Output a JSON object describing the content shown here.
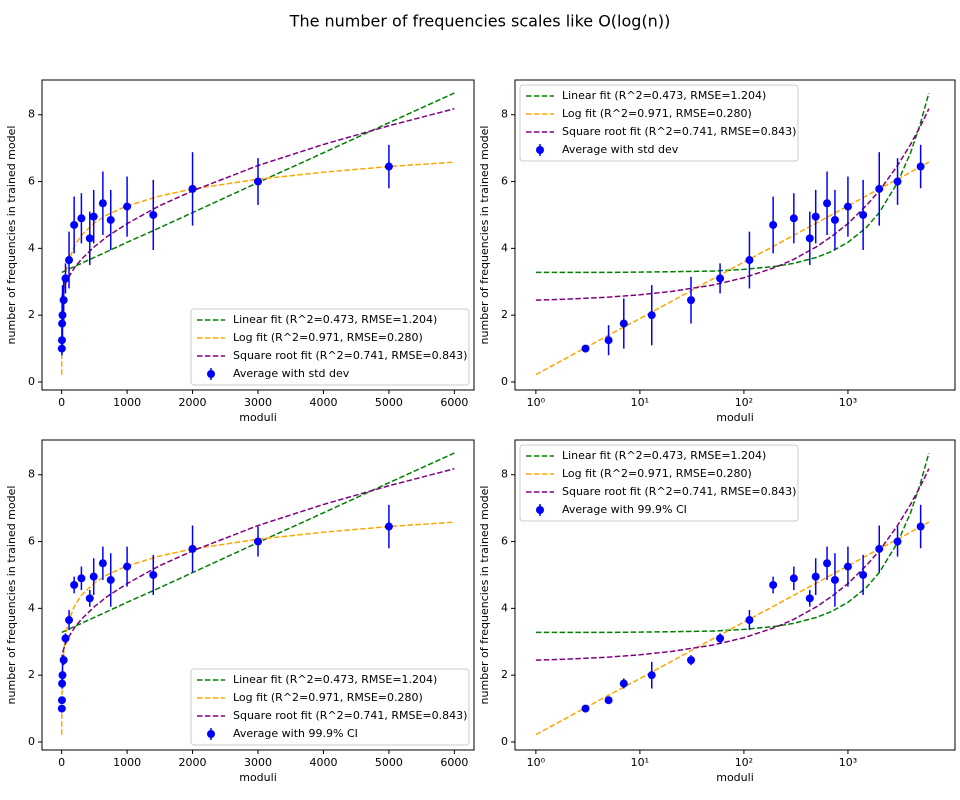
{
  "title": "The number of frequencies scales like O(log(n))",
  "chart_data": [
    {
      "type": "errorbar",
      "xscale": "linear",
      "x_label": "moduli",
      "y_label": "number of frequencies in trained model",
      "xlim": [
        -300,
        6300
      ],
      "ylim": [
        -0.24,
        9.04
      ],
      "xticks": [
        0,
        1000,
        2000,
        3000,
        4000,
        5000,
        6000
      ],
      "yticks": [
        0,
        2,
        4,
        6,
        8
      ],
      "legend": "lower right",
      "series": [
        {
          "name": "Linear fit (R^2=0.473, RMSE=1.204)",
          "color": "#008000",
          "style": "dashed",
          "x": [
            1,
            2,
            5,
            10,
            20,
            50,
            100,
            200,
            300,
            500,
            700,
            1000,
            1500,
            2000,
            3000,
            4000,
            5000,
            6000
          ],
          "values": [
            3.28,
            3.28,
            3.28,
            3.29,
            3.3,
            3.32,
            3.37,
            3.46,
            3.55,
            3.73,
            3.91,
            4.18,
            4.62,
            5.07,
            5.97,
            6.86,
            7.76,
            8.65
          ]
        },
        {
          "name": "Log fit (R^2=0.971, RMSE=0.280)",
          "color": "#ffa500",
          "style": "dashed",
          "x": [
            1,
            2,
            5,
            10,
            20,
            50,
            100,
            200,
            300,
            500,
            700,
            1000,
            1500,
            2000,
            3000,
            4000,
            5000,
            6000
          ],
          "values": [
            0.22,
            0.73,
            1.4,
            1.9,
            2.41,
            3.08,
            3.59,
            4.09,
            4.39,
            4.76,
            5.01,
            5.27,
            5.57,
            5.78,
            6.07,
            6.28,
            6.45,
            6.58
          ]
        },
        {
          "name": "Square root fit (R^2=0.741, RMSE=0.843)",
          "color": "#800080",
          "style": "dashed",
          "x": [
            1,
            2,
            5,
            10,
            20,
            50,
            100,
            200,
            300,
            500,
            700,
            1000,
            1500,
            2000,
            3000,
            4000,
            5000,
            6000
          ],
          "values": [
            2.45,
            2.48,
            2.54,
            2.61,
            2.71,
            2.9,
            3.12,
            3.43,
            3.67,
            4.05,
            4.36,
            4.74,
            5.28,
            5.72,
            6.48,
            7.11,
            7.67,
            8.18
          ]
        },
        {
          "name": "Average with std dev",
          "color": "#0000ff",
          "style": "errorbar",
          "x": [
            3,
            5,
            7,
            13,
            31,
            59,
            113,
            191,
            302,
            430,
            490,
            630,
            750,
            1000,
            1400,
            2000,
            3000,
            5000
          ],
          "values": [
            1.0,
            1.25,
            1.75,
            2.0,
            2.45,
            3.1,
            3.65,
            4.7,
            4.9,
            4.3,
            4.95,
            5.35,
            4.85,
            5.25,
            5.0,
            5.78,
            6.0,
            6.45
          ],
          "errors": [
            0.1,
            0.45,
            0.75,
            0.9,
            0.7,
            0.45,
            0.85,
            0.85,
            0.75,
            0.8,
            0.8,
            0.95,
            0.9,
            0.9,
            1.05,
            1.1,
            0.7,
            0.65
          ]
        }
      ]
    },
    {
      "type": "errorbar",
      "xscale": "log",
      "x_label": "moduli",
      "y_label": "number of frequencies in trained model",
      "xlim": [
        0.63,
        10700
      ],
      "ylim": [
        -0.24,
        9.04
      ],
      "xticks": [
        {
          "value": 1,
          "label": "10⁰"
        },
        {
          "value": 10,
          "label": "10¹"
        },
        {
          "value": 100,
          "label": "10²"
        },
        {
          "value": 1000,
          "label": "10³"
        }
      ],
      "yticks": [
        0,
        2,
        4,
        6,
        8
      ],
      "legend": "upper left",
      "series": [
        {
          "name": "Linear fit (R^2=0.473, RMSE=1.204)",
          "color": "#008000",
          "style": "dashed",
          "x": [
            1,
            2,
            5,
            10,
            20,
            50,
            100,
            200,
            300,
            500,
            700,
            1000,
            1500,
            2000,
            3000,
            4000,
            5000,
            6000
          ],
          "values": [
            3.28,
            3.28,
            3.28,
            3.29,
            3.3,
            3.32,
            3.37,
            3.46,
            3.55,
            3.73,
            3.91,
            4.18,
            4.62,
            5.07,
            5.97,
            6.86,
            7.76,
            8.65
          ]
        },
        {
          "name": "Log fit (R^2=0.971, RMSE=0.280)",
          "color": "#ffa500",
          "style": "dashed",
          "x": [
            1,
            2,
            5,
            10,
            20,
            50,
            100,
            200,
            300,
            500,
            700,
            1000,
            1500,
            2000,
            3000,
            4000,
            5000,
            6000
          ],
          "values": [
            0.22,
            0.73,
            1.4,
            1.9,
            2.41,
            3.08,
            3.59,
            4.09,
            4.39,
            4.76,
            5.01,
            5.27,
            5.57,
            5.78,
            6.07,
            6.28,
            6.45,
            6.58
          ]
        },
        {
          "name": "Square root fit (R^2=0.741, RMSE=0.843)",
          "color": "#800080",
          "style": "dashed",
          "x": [
            1,
            2,
            5,
            10,
            20,
            50,
            100,
            200,
            300,
            500,
            700,
            1000,
            1500,
            2000,
            3000,
            4000,
            5000,
            6000
          ],
          "values": [
            2.45,
            2.48,
            2.54,
            2.61,
            2.71,
            2.9,
            3.12,
            3.43,
            3.67,
            4.05,
            4.36,
            4.74,
            5.28,
            5.72,
            6.48,
            7.11,
            7.67,
            8.18
          ]
        },
        {
          "name": "Average with std dev",
          "color": "#0000ff",
          "style": "errorbar",
          "x": [
            3,
            5,
            7,
            13,
            31,
            59,
            113,
            191,
            302,
            430,
            490,
            630,
            750,
            1000,
            1400,
            2000,
            3000,
            5000
          ],
          "values": [
            1.0,
            1.25,
            1.75,
            2.0,
            2.45,
            3.1,
            3.65,
            4.7,
            4.9,
            4.3,
            4.95,
            5.35,
            4.85,
            5.25,
            5.0,
            5.78,
            6.0,
            6.45
          ],
          "errors": [
            0.1,
            0.45,
            0.75,
            0.9,
            0.7,
            0.45,
            0.85,
            0.85,
            0.75,
            0.8,
            0.8,
            0.95,
            0.9,
            0.9,
            1.05,
            1.1,
            0.7,
            0.65
          ]
        }
      ]
    },
    {
      "type": "errorbar",
      "xscale": "linear",
      "x_label": "moduli",
      "y_label": "number of frequencies in trained model",
      "xlim": [
        -300,
        6300
      ],
      "ylim": [
        -0.24,
        9.04
      ],
      "xticks": [
        0,
        1000,
        2000,
        3000,
        4000,
        5000,
        6000
      ],
      "yticks": [
        0,
        2,
        4,
        6,
        8
      ],
      "legend": "lower right",
      "series": [
        {
          "name": "Linear fit (R^2=0.473, RMSE=1.204)",
          "color": "#008000",
          "style": "dashed",
          "x": [
            1,
            2,
            5,
            10,
            20,
            50,
            100,
            200,
            300,
            500,
            700,
            1000,
            1500,
            2000,
            3000,
            4000,
            5000,
            6000
          ],
          "values": [
            3.28,
            3.28,
            3.28,
            3.29,
            3.3,
            3.32,
            3.37,
            3.46,
            3.55,
            3.73,
            3.91,
            4.18,
            4.62,
            5.07,
            5.97,
            6.86,
            7.76,
            8.65
          ]
        },
        {
          "name": "Log fit (R^2=0.971, RMSE=0.280)",
          "color": "#ffa500",
          "style": "dashed",
          "x": [
            1,
            2,
            5,
            10,
            20,
            50,
            100,
            200,
            300,
            500,
            700,
            1000,
            1500,
            2000,
            3000,
            4000,
            5000,
            6000
          ],
          "values": [
            0.22,
            0.73,
            1.4,
            1.9,
            2.41,
            3.08,
            3.59,
            4.09,
            4.39,
            4.76,
            5.01,
            5.27,
            5.57,
            5.78,
            6.07,
            6.28,
            6.45,
            6.58
          ]
        },
        {
          "name": "Square root fit (R^2=0.741, RMSE=0.843)",
          "color": "#800080",
          "style": "dashed",
          "x": [
            1,
            2,
            5,
            10,
            20,
            50,
            100,
            200,
            300,
            500,
            700,
            1000,
            1500,
            2000,
            3000,
            4000,
            5000,
            6000
          ],
          "values": [
            2.45,
            2.48,
            2.54,
            2.61,
            2.71,
            2.9,
            3.12,
            3.43,
            3.67,
            4.05,
            4.36,
            4.74,
            5.28,
            5.72,
            6.48,
            7.11,
            7.67,
            8.18
          ]
        },
        {
          "name": "Average with 99.9% CI",
          "color": "#0000ff",
          "style": "errorbar",
          "x": [
            3,
            5,
            7,
            13,
            31,
            59,
            113,
            191,
            302,
            430,
            490,
            630,
            750,
            1000,
            1400,
            2000,
            3000,
            5000
          ],
          "values": [
            1.0,
            1.25,
            1.75,
            2.0,
            2.45,
            3.1,
            3.65,
            4.7,
            4.9,
            4.3,
            4.95,
            5.35,
            4.85,
            5.25,
            5.0,
            5.78,
            6.0,
            6.45
          ],
          "errors": [
            0.05,
            0.1,
            0.15,
            0.4,
            0.15,
            0.15,
            0.3,
            0.25,
            0.35,
            0.25,
            0.55,
            0.5,
            0.8,
            0.6,
            0.6,
            0.7,
            0.45,
            0.65
          ]
        }
      ]
    },
    {
      "type": "errorbar",
      "xscale": "log",
      "x_label": "moduli",
      "y_label": "number of frequencies in trained model",
      "xlim": [
        0.63,
        10700
      ],
      "ylim": [
        -0.24,
        9.04
      ],
      "xticks": [
        {
          "value": 1,
          "label": "10⁰"
        },
        {
          "value": 10,
          "label": "10¹"
        },
        {
          "value": 100,
          "label": "10²"
        },
        {
          "value": 1000,
          "label": "10³"
        }
      ],
      "yticks": [
        0,
        2,
        4,
        6,
        8
      ],
      "legend": "upper left",
      "series": [
        {
          "name": "Linear fit (R^2=0.473, RMSE=1.204)",
          "color": "#008000",
          "style": "dashed",
          "x": [
            1,
            2,
            5,
            10,
            20,
            50,
            100,
            200,
            300,
            500,
            700,
            1000,
            1500,
            2000,
            3000,
            4000,
            5000,
            6000
          ],
          "values": [
            3.28,
            3.28,
            3.28,
            3.29,
            3.3,
            3.32,
            3.37,
            3.46,
            3.55,
            3.73,
            3.91,
            4.18,
            4.62,
            5.07,
            5.97,
            6.86,
            7.76,
            8.65
          ]
        },
        {
          "name": "Log fit (R^2=0.971, RMSE=0.280)",
          "color": "#ffa500",
          "style": "dashed",
          "x": [
            1,
            2,
            5,
            10,
            20,
            50,
            100,
            200,
            300,
            500,
            700,
            1000,
            1500,
            2000,
            3000,
            4000,
            5000,
            6000
          ],
          "values": [
            0.22,
            0.73,
            1.4,
            1.9,
            2.41,
            3.08,
            3.59,
            4.09,
            4.39,
            4.76,
            5.01,
            5.27,
            5.57,
            5.78,
            6.07,
            6.28,
            6.45,
            6.58
          ]
        },
        {
          "name": "Square root fit (R^2=0.741, RMSE=0.843)",
          "color": "#800080",
          "style": "dashed",
          "x": [
            1,
            2,
            5,
            10,
            20,
            50,
            100,
            200,
            300,
            500,
            700,
            1000,
            1500,
            2000,
            3000,
            4000,
            5000,
            6000
          ],
          "values": [
            2.45,
            2.48,
            2.54,
            2.61,
            2.71,
            2.9,
            3.12,
            3.43,
            3.67,
            4.05,
            4.36,
            4.74,
            5.28,
            5.72,
            6.48,
            7.11,
            7.67,
            8.18
          ]
        },
        {
          "name": "Average with 99.9% CI",
          "color": "#0000ff",
          "style": "errorbar",
          "x": [
            3,
            5,
            7,
            13,
            31,
            59,
            113,
            191,
            302,
            430,
            490,
            630,
            750,
            1000,
            1400,
            2000,
            3000,
            5000
          ],
          "values": [
            1.0,
            1.25,
            1.75,
            2.0,
            2.45,
            3.1,
            3.65,
            4.7,
            4.9,
            4.3,
            4.95,
            5.35,
            4.85,
            5.25,
            5.0,
            5.78,
            6.0,
            6.45
          ],
          "errors": [
            0.05,
            0.1,
            0.15,
            0.4,
            0.15,
            0.15,
            0.3,
            0.25,
            0.35,
            0.25,
            0.55,
            0.5,
            0.8,
            0.6,
            0.6,
            0.7,
            0.45,
            0.65
          ]
        }
      ]
    }
  ]
}
